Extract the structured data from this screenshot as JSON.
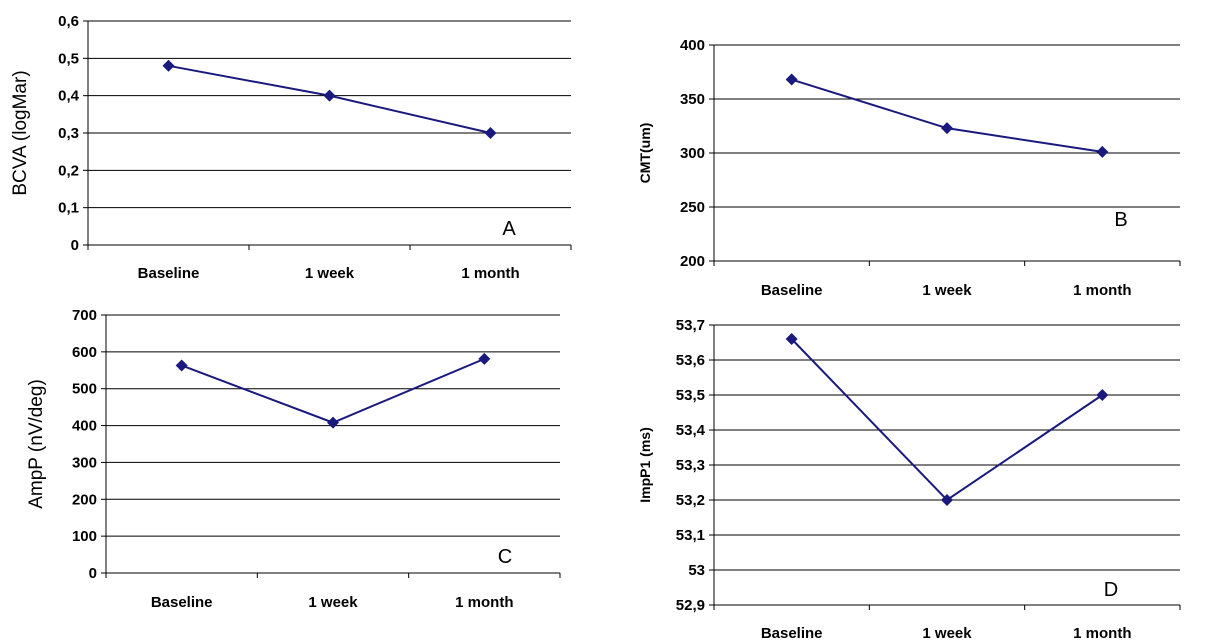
{
  "chart_data": [
    {
      "type": "line",
      "panel_letter": "A",
      "categories": [
        "Baseline",
        "1 week",
        "1 month"
      ],
      "series": [
        {
          "values": [
            0.48,
            0.4,
            0.3
          ],
          "color": "#1a1a7e"
        }
      ],
      "ylabel": "BCVA (logMar)",
      "ylim": [
        0,
        0.6
      ],
      "yticks": [
        "0",
        "0,1",
        "0,2",
        "0,3",
        "0,4",
        "0,5",
        "0,6"
      ],
      "grid": true
    },
    {
      "type": "line",
      "panel_letter": "B",
      "categories": [
        "Baseline",
        "1 week",
        "1 month"
      ],
      "series": [
        {
          "values": [
            368,
            323,
            301
          ],
          "color": "#1a1a7e"
        }
      ],
      "ylabel": "CMT(um)",
      "ylim": [
        200,
        400
      ],
      "yticks": [
        "200",
        "250",
        "300",
        "350",
        "400"
      ],
      "grid": true
    },
    {
      "type": "line",
      "panel_letter": "C",
      "categories": [
        "Baseline",
        "1 week",
        "1 month"
      ],
      "series": [
        {
          "values": [
            563,
            408,
            581
          ],
          "color": "#1a1a7e"
        }
      ],
      "ylabel": "AmpP  (nV/deg)",
      "ylim": [
        0,
        700
      ],
      "yticks": [
        "0",
        "100",
        "200",
        "300",
        "400",
        "500",
        "600",
        "700"
      ],
      "grid": true
    },
    {
      "type": "line",
      "panel_letter": "D",
      "categories": [
        "Baseline",
        "1 week",
        "1 month"
      ],
      "series": [
        {
          "values": [
            53.66,
            53.2,
            53.5
          ],
          "color": "#1a1a7e"
        }
      ],
      "ylabel": "ImpP1 (ms)",
      "ylim": [
        52.9,
        53.7
      ],
      "yticks": [
        "52,9",
        "53",
        "53,1",
        "53,2",
        "53,3",
        "53,4",
        "53,5",
        "53,6",
        "53,7"
      ],
      "grid": true
    }
  ]
}
